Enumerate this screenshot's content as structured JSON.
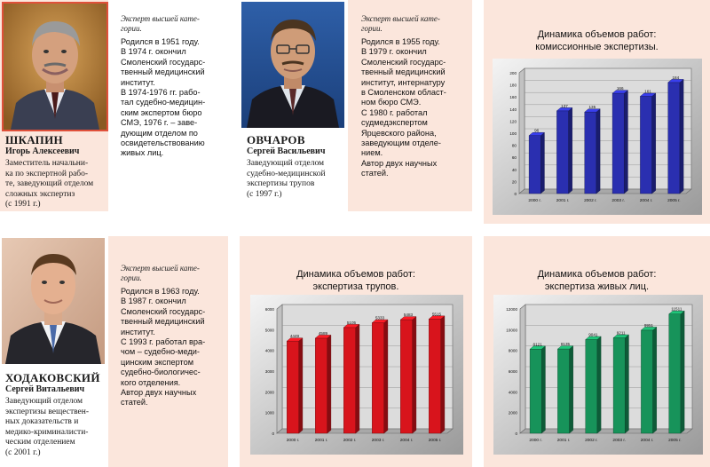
{
  "experts": [
    {
      "surname": "ШКАПИН",
      "name": "Игорь Алексеевич",
      "role": [
        "Заместитель начальни-",
        "ка по экспертной рабо-",
        "те, заведующий отделом",
        "сложных экспертиз",
        "(с 1991 г.)"
      ],
      "rank": [
        "Эксперт высшей кате-",
        "гории."
      ],
      "bio": [
        "Родился в 1951 году.",
        "В 1974 г. окончил",
        "Смоленский государс-",
        "твенный медицинский",
        "институт.",
        "В 1974-1976 гг. рабо-",
        "тал судебно-медицин-",
        "ским экспертом бюро",
        "СМЭ, 1976 г. – заве-",
        "дующим отделом по",
        "освидетельствованию",
        "живых лиц."
      ]
    },
    {
      "surname": "ОВЧАРОВ",
      "name": "Сергей Васильевич",
      "role": [
        "Заведующий отделом",
        "судебно-медицинской",
        "экспертизы трупов",
        "(с 1997 г.)"
      ],
      "rank": [
        "Эксперт высшей кате-",
        "гории."
      ],
      "bio": [
        "Родился в 1955 году.",
        "В 1979 г. окончил",
        "Смоленский государс-",
        "твенный медицинский",
        "институт, интернатуру",
        "в Смоленском област-",
        "ном бюро СМЭ.",
        "С 1980 г. работал",
        "судмедэкспертом",
        "Ярцевского района,",
        "заведующим отделе-",
        "нием.",
        "Автор двух научных",
        "статей."
      ]
    },
    {
      "surname": "ХОДАКОВСКИЙ",
      "name": "Сергей Витальевич",
      "role": [
        "Заведующий отделом",
        "экспертизы веществен-",
        "ных доказательств и",
        "медико-криминалисти-",
        "ческим отделением",
        "(с 2001 г.)"
      ],
      "rank": [
        "Эксперт высшей кате-",
        "гории."
      ],
      "bio": [
        "Родился в 1963 году.",
        "В 1987 г. окончил",
        "Смоленский государс-",
        "твенный медицинский",
        "институт.",
        "С 1993 г. работал вра-",
        "чом – судебно-меди-",
        "цинским экспертом",
        "судебно-биологичес-",
        "кого отделения.",
        "Автор двух научных",
        "статей."
      ]
    }
  ],
  "chart_data": [
    {
      "type": "bar",
      "title": [
        "Динамика объемов работ:",
        "комиссионные экспертизы."
      ],
      "categories": [
        "2000 г.",
        "2001 г.",
        "2002 г.",
        "2003 г.",
        "2004 г.",
        "2005 г."
      ],
      "values": [
        96,
        137,
        135,
        166,
        161,
        184
      ],
      "data_labels": [
        "96",
        "137",
        "135",
        "166",
        "161",
        "184"
      ],
      "ylim": [
        0,
        200
      ],
      "yticks": [
        "0",
        "20",
        "40",
        "60",
        "80",
        "100",
        "120",
        "140",
        "160",
        "180",
        "200"
      ],
      "color": "#2a2fb0",
      "grid": true
    },
    {
      "type": "bar",
      "title": [
        "Динамика объемов работ:",
        "экспертиза трупов."
      ],
      "categories": [
        "2000 г.",
        "2001 г.",
        "2002 г.",
        "2003 г.",
        "2004 г.",
        "2005 г."
      ],
      "values": [
        4449,
        4589,
        5105,
        5333,
        5483,
        5515
      ],
      "data_labels": [
        "4449",
        "4589",
        "5105",
        "5333",
        "5483",
        "5515"
      ],
      "ylim": [
        0,
        6000
      ],
      "yticks": [
        "0",
        "1000",
        "2000",
        "3000",
        "4000",
        "5000",
        "6000"
      ],
      "color": "#d8141c",
      "grid": true
    },
    {
      "type": "bar",
      "title": [
        "Динамика объемов работ:",
        "экспертиза живых лиц."
      ],
      "categories": [
        "2000 г.",
        "2001 г.",
        "2002 г.",
        "2003 г.",
        "2004 г.",
        "2005 г."
      ],
      "values": [
        8121,
        8135,
        9041,
        9211,
        9951,
        11511
      ],
      "data_labels": [
        "8121",
        "8135",
        "9041",
        "9211",
        "9951",
        "11511"
      ],
      "ylim": [
        0,
        12000
      ],
      "yticks": [
        "0",
        "2000",
        "4000",
        "6000",
        "8000",
        "10000",
        "12000"
      ],
      "color": "#17935a",
      "grid": true
    }
  ]
}
